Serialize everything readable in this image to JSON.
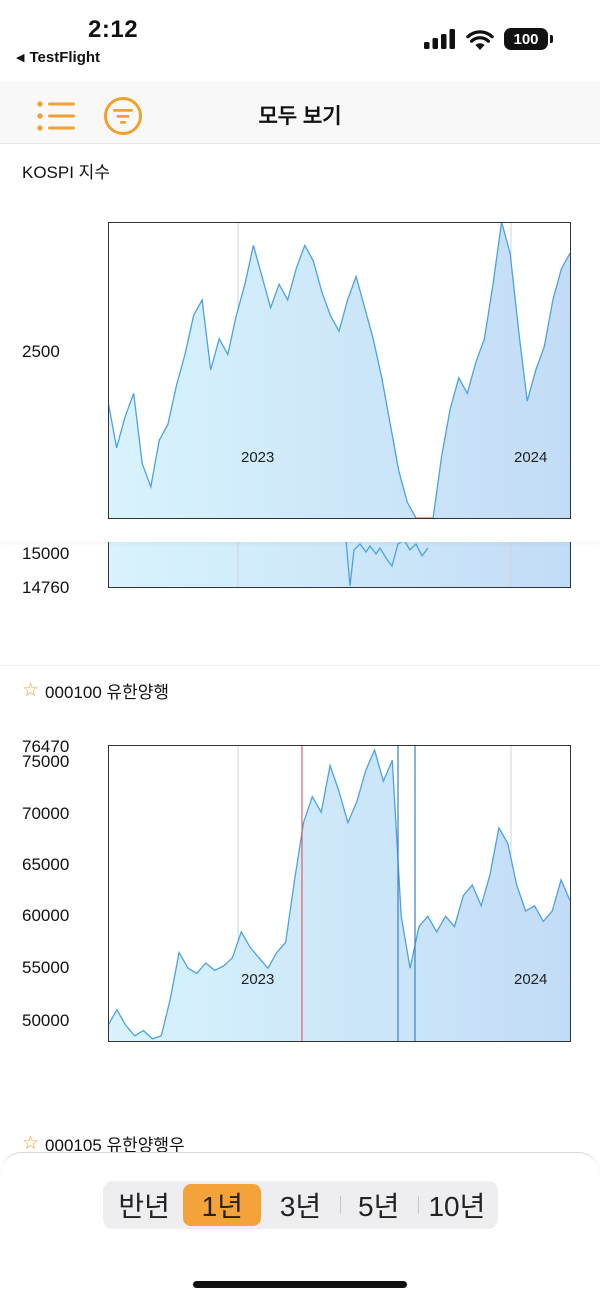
{
  "status_bar": {
    "time": "2:12",
    "back_app": "TestFlight",
    "battery": "100"
  },
  "nav": {
    "title": "모두 보기",
    "accent_color": "#f0a030",
    "left_icon": "list-icon",
    "right_icon": "filter-icon"
  },
  "sections": [
    {
      "title": "KOSPI 지수",
      "starred": false,
      "y_tick_labels": [
        "2500"
      ],
      "x_tick_labels": [
        "2023",
        "2024"
      ]
    },
    {
      "title": "",
      "partial_y_tick_labels": [
        "15000",
        "14760"
      ]
    },
    {
      "title": "000100 유한양행",
      "starred": true,
      "y_tick_labels": [
        "76470",
        "75000",
        "70000",
        "65000",
        "60000",
        "55000",
        "50000"
      ],
      "x_tick_labels": [
        "2023",
        "2024"
      ]
    },
    {
      "title": "000105 유한양행우",
      "starred": true
    }
  ],
  "period_selector": {
    "options": [
      "반년",
      "1년",
      "3년",
      "5년",
      "10년"
    ],
    "selected_index": 1,
    "selected_color": "#f4a23a"
  },
  "chart_data": [
    {
      "type": "area",
      "title": "KOSPI 지수",
      "x_ticks": [
        "2023",
        "2024"
      ],
      "y_ticks": [
        2500
      ],
      "ylim": [
        2300,
        2680
      ],
      "series": [
        {
          "values": [
            2450,
            2390,
            2430,
            2460,
            2370,
            2340,
            2400,
            2420,
            2470,
            2510,
            2560,
            2580,
            2490,
            2530,
            2510,
            2560,
            2600,
            2650,
            2610,
            2570,
            2600,
            2580,
            2620,
            2650,
            2630,
            2590,
            2560,
            2540,
            2580,
            2610,
            2570,
            2530,
            2480,
            2420,
            2360,
            2320,
            2280,
            2180,
            2300,
            2380,
            2440,
            2480,
            2460,
            2500,
            2530,
            2600,
            2680,
            2640,
            2540,
            2450,
            2490,
            2520,
            2580,
            2620,
            2640
          ]
        }
      ]
    },
    {
      "type": "area",
      "title": "000100 유한양행",
      "x_ticks": [
        "2023",
        "2024"
      ],
      "y_ticks": [
        76470,
        75000,
        70000,
        65000,
        60000,
        55000,
        50000
      ],
      "ylim": [
        48000,
        76470
      ],
      "series": [
        {
          "values": [
            49500,
            51000,
            49500,
            48500,
            49000,
            48200,
            48500,
            52000,
            56500,
            55000,
            54500,
            55500,
            54800,
            55200,
            56000,
            58500,
            57000,
            56000,
            55000,
            56500,
            57500,
            63500,
            69000,
            71500,
            70000,
            74500,
            72000,
            69000,
            71000,
            74000,
            76000,
            73000,
            75000,
            60000,
            55000,
            59000,
            60000,
            58500,
            60000,
            59000,
            62000,
            63000,
            61000,
            64000,
            68500,
            67000,
            63000,
            60500,
            61000,
            59500,
            60500,
            63500,
            61500
          ]
        }
      ]
    }
  ]
}
